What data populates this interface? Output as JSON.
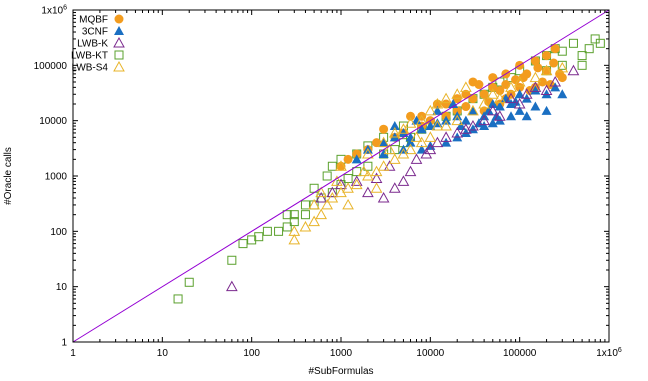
{
  "chart_data": {
    "type": "scatter",
    "title": "",
    "xlabel": "#SubFormulas",
    "ylabel": "#Oracle calls",
    "xscale": "log",
    "yscale": "log",
    "xlim": [
      1,
      1000000
    ],
    "ylim": [
      1,
      1000000
    ],
    "x_ticks": [
      {
        "value": 1,
        "label": "1"
      },
      {
        "value": 10,
        "label": "10"
      },
      {
        "value": 100,
        "label": "100"
      },
      {
        "value": 1000,
        "label": "1000"
      },
      {
        "value": 10000,
        "label": "10000"
      },
      {
        "value": 100000,
        "label": "100000"
      },
      {
        "value": 1000000,
        "label": "1x10",
        "sup": "6"
      }
    ],
    "y_ticks": [
      {
        "value": 1,
        "label": "1"
      },
      {
        "value": 10,
        "label": "10"
      },
      {
        "value": 100,
        "label": "100"
      },
      {
        "value": 1000,
        "label": "1000"
      },
      {
        "value": 10000,
        "label": "10000"
      },
      {
        "value": 100000,
        "label": "100000"
      },
      {
        "value": 1000000,
        "label": "1x10",
        "sup": "6"
      }
    ],
    "grid": false,
    "legend_position": "top-left",
    "reference_line": {
      "kind": "y = x",
      "color": "#9400d3"
    },
    "series": [
      {
        "name": "MQBF",
        "marker": "filled-circle",
        "color": "#f39c1e",
        "points": [
          [
            70000,
            70000
          ],
          [
            100000,
            100000
          ],
          [
            150000,
            120000
          ],
          [
            200000,
            150000
          ],
          [
            250000,
            200000
          ],
          [
            300000,
            60000
          ],
          [
            200000,
            80000
          ],
          [
            150000,
            40000
          ],
          [
            100000,
            40000
          ],
          [
            80000,
            30000
          ],
          [
            60000,
            35000
          ],
          [
            50000,
            40000
          ],
          [
            40000,
            30000
          ],
          [
            30000,
            25000
          ],
          [
            25000,
            30000
          ],
          [
            20000,
            15000
          ],
          [
            15000,
            12000
          ],
          [
            12000,
            20000
          ],
          [
            10000,
            10000
          ],
          [
            8000,
            8000
          ],
          [
            6000,
            12000
          ],
          [
            5000,
            6000
          ],
          [
            4000,
            5000
          ],
          [
            3000,
            7000
          ],
          [
            2500,
            4000
          ],
          [
            2000,
            3000
          ],
          [
            1500,
            2500
          ],
          [
            1200,
            2000
          ],
          [
            1000,
            1500
          ],
          [
            30000,
            50000
          ],
          [
            50000,
            60000
          ],
          [
            70000,
            45000
          ],
          [
            90000,
            55000
          ],
          [
            120000,
            70000
          ],
          [
            130000,
            35000
          ],
          [
            180000,
            50000
          ],
          [
            220000,
            45000
          ],
          [
            280000,
            70000
          ],
          [
            40000,
            15000
          ],
          [
            20000,
            25000
          ],
          [
            8000,
            12000
          ],
          [
            15000,
            20000
          ],
          [
            25000,
            18000
          ],
          [
            35000,
            45000
          ],
          [
            60000,
            20000
          ],
          [
            45000,
            22000
          ],
          [
            70000,
            25000
          ],
          [
            110000,
            60000
          ],
          [
            160000,
            90000
          ],
          [
            240000,
            110000
          ]
        ]
      },
      {
        "name": "3CNF",
        "marker": "filled-triangle",
        "color": "#1a6fc2",
        "points": [
          [
            1500,
            2000
          ],
          [
            2000,
            3000
          ],
          [
            3000,
            4000
          ],
          [
            4000,
            5000
          ],
          [
            5000,
            6000
          ],
          [
            6000,
            5000
          ],
          [
            8000,
            7000
          ],
          [
            10000,
            8000
          ],
          [
            12000,
            9000
          ],
          [
            15000,
            10000
          ],
          [
            20000,
            12000
          ],
          [
            25000,
            10000
          ],
          [
            30000,
            15000
          ],
          [
            40000,
            12000
          ],
          [
            50000,
            20000
          ],
          [
            60000,
            18000
          ],
          [
            70000,
            25000
          ],
          [
            80000,
            20000
          ],
          [
            100000,
            30000
          ],
          [
            120000,
            25000
          ],
          [
            150000,
            35000
          ],
          [
            200000,
            30000
          ],
          [
            250000,
            40000
          ],
          [
            300000,
            30000
          ],
          [
            8000,
            3000
          ],
          [
            10000,
            3500
          ],
          [
            15000,
            4000
          ],
          [
            20000,
            5000
          ],
          [
            25000,
            6000
          ],
          [
            30000,
            7000
          ],
          [
            40000,
            8000
          ],
          [
            50000,
            9000
          ],
          [
            60000,
            10000
          ],
          [
            80000,
            12000
          ],
          [
            100000,
            15000
          ],
          [
            120000,
            12000
          ],
          [
            150000,
            18000
          ],
          [
            200000,
            15000
          ],
          [
            5000,
            3000
          ],
          [
            6000,
            4000
          ],
          [
            4000,
            8000
          ],
          [
            3000,
            2500
          ],
          [
            7000,
            10000
          ],
          [
            12000,
            15000
          ],
          [
            18000,
            20000
          ],
          [
            22000,
            8000
          ],
          [
            35000,
            9000
          ],
          [
            45000,
            15000
          ],
          [
            55000,
            12000
          ],
          [
            90000,
            22000
          ]
        ]
      },
      {
        "name": "LWB-K",
        "marker": "open-triangle",
        "color": "#7b2a8e",
        "points": [
          [
            60,
            10
          ],
          [
            400000,
            80000
          ],
          [
            250000,
            50000
          ],
          [
            150000,
            40000
          ],
          [
            100000,
            20000
          ],
          [
            50000,
            15000
          ],
          [
            20000,
            6000
          ],
          [
            10000,
            3000
          ],
          [
            5000,
            800
          ],
          [
            4000,
            600
          ],
          [
            3000,
            400
          ],
          [
            2000,
            500
          ],
          [
            1500,
            800
          ],
          [
            1000,
            700
          ],
          [
            800,
            500
          ],
          [
            600,
            400
          ],
          [
            3500,
            1500
          ],
          [
            7000,
            2000
          ],
          [
            12000,
            4000
          ],
          [
            30000,
            8000
          ],
          [
            60000,
            12000
          ],
          [
            80000,
            25000
          ],
          [
            120000,
            30000
          ],
          [
            200000,
            35000
          ],
          [
            15000,
            5000
          ],
          [
            25000,
            7000
          ],
          [
            40000,
            10000
          ],
          [
            6000,
            1200
          ],
          [
            2500,
            900
          ],
          [
            9000,
            2500
          ]
        ]
      },
      {
        "name": "LWB-KT",
        "marker": "open-square",
        "color": "#5aa02c",
        "points": [
          [
            15,
            6
          ],
          [
            20,
            12
          ],
          [
            60,
            30
          ],
          [
            80,
            60
          ],
          [
            100,
            70
          ],
          [
            120,
            80
          ],
          [
            200,
            100
          ],
          [
            250,
            120
          ],
          [
            300,
            150
          ],
          [
            400,
            200
          ],
          [
            500,
            300
          ],
          [
            600,
            400
          ],
          [
            800,
            500
          ],
          [
            1000,
            700
          ],
          [
            1200,
            900
          ],
          [
            1500,
            1200
          ],
          [
            2000,
            1500
          ],
          [
            3000,
            2500
          ],
          [
            4000,
            3000
          ],
          [
            5000,
            4000
          ],
          [
            6000,
            5000
          ],
          [
            8000,
            7000
          ],
          [
            10000,
            9000
          ],
          [
            15000,
            12000
          ],
          [
            20000,
            15000
          ],
          [
            30000,
            25000
          ],
          [
            40000,
            30000
          ],
          [
            50000,
            40000
          ],
          [
            60000,
            50000
          ],
          [
            80000,
            60000
          ],
          [
            100000,
            80000
          ],
          [
            150000,
            120000
          ],
          [
            200000,
            150000
          ],
          [
            250000,
            200000
          ],
          [
            300000,
            180000
          ],
          [
            400000,
            250000
          ],
          [
            500000,
            150000
          ],
          [
            600000,
            200000
          ],
          [
            700000,
            300000
          ],
          [
            800000,
            250000
          ],
          [
            500000,
            100000
          ],
          [
            300000,
            100000
          ],
          [
            200000,
            80000
          ],
          [
            1000,
            2000
          ],
          [
            2000,
            3500
          ],
          [
            3000,
            5000
          ],
          [
            500,
            600
          ],
          [
            700,
            1000
          ],
          [
            400,
            300
          ],
          [
            300,
            200
          ],
          [
            800,
            1500
          ],
          [
            1500,
            2500
          ],
          [
            150,
            100
          ],
          [
            250,
            200
          ],
          [
            5000,
            8000
          ]
        ]
      },
      {
        "name": "LWB-S4",
        "marker": "open-triangle",
        "color": "#e8b42a",
        "points": [
          [
            300,
            100
          ],
          [
            300,
            70
          ],
          [
            400,
            120
          ],
          [
            500,
            150
          ],
          [
            600,
            200
          ],
          [
            700,
            300
          ],
          [
            800,
            400
          ],
          [
            1000,
            500
          ],
          [
            1200,
            600
          ],
          [
            1500,
            700
          ],
          [
            2000,
            1000
          ],
          [
            2500,
            1200
          ],
          [
            3000,
            1500
          ],
          [
            4000,
            2000
          ],
          [
            5000,
            2500
          ],
          [
            6000,
            3000
          ],
          [
            8000,
            4000
          ],
          [
            10000,
            5000
          ],
          [
            15000,
            8000
          ],
          [
            20000,
            10000
          ],
          [
            30000,
            15000
          ],
          [
            40000,
            20000
          ],
          [
            50000,
            30000
          ],
          [
            60000,
            25000
          ],
          [
            80000,
            40000
          ],
          [
            100000,
            50000
          ],
          [
            150000,
            60000
          ],
          [
            200000,
            80000
          ],
          [
            300000,
            90000
          ],
          [
            1000,
            1500
          ],
          [
            2000,
            2500
          ],
          [
            3000,
            4000
          ],
          [
            4000,
            6000
          ],
          [
            5000,
            7000
          ],
          [
            6000,
            9000
          ],
          [
            8000,
            10000
          ],
          [
            10000,
            15000
          ],
          [
            12000,
            20000
          ],
          [
            15000,
            25000
          ],
          [
            20000,
            30000
          ],
          [
            25000,
            40000
          ],
          [
            500,
            300
          ],
          [
            600,
            500
          ],
          [
            1200,
            300
          ],
          [
            2500,
            600
          ],
          [
            900,
            800
          ],
          [
            1800,
            1200
          ],
          [
            3500,
            3000
          ],
          [
            7000,
            5000
          ],
          [
            12000,
            8000
          ]
        ]
      }
    ]
  }
}
